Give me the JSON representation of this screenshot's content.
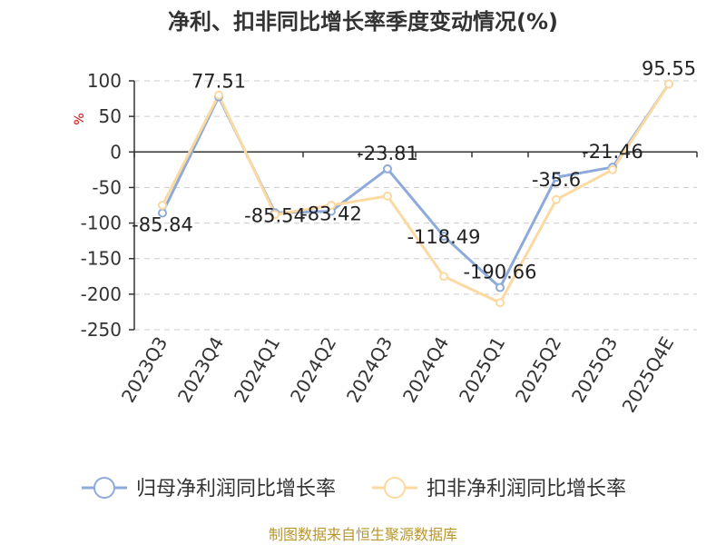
{
  "chart_data": {
    "type": "line",
    "title": "净利、扣非同比增长率季度变动情况(%)",
    "ylabel": "%",
    "categories": [
      "2023Q3",
      "2023Q4",
      "2024Q1",
      "2024Q2",
      "2024Q3",
      "2024Q4",
      "2025Q1",
      "2025Q2",
      "2025Q3",
      "2025Q4E"
    ],
    "ylim": [
      -250,
      100
    ],
    "yticks": [
      100,
      50,
      0,
      -50,
      -100,
      -150,
      -200,
      -250
    ],
    "grid": true,
    "legend_position": "bottom",
    "series": [
      {
        "name": "归母净利润同比增长率",
        "color": "#8eaadb",
        "values": [
          -85.84,
          77.51,
          -85.54,
          -83.42,
          -23.81,
          -118.49,
          -190.66,
          -35.6,
          -21.46,
          95.55
        ],
        "labels": [
          "-85.84",
          "77.51",
          "-85.54",
          "-83.42",
          "-23.81",
          "-118.49",
          "-190.66",
          "-35.6",
          "-21.46",
          "95.55"
        ]
      },
      {
        "name": "扣非净利润同比增长率",
        "color": "#fcd9a0",
        "values": [
          -75,
          80,
          -88,
          -75,
          -62,
          -175,
          -212,
          -67,
          -25,
          95.55
        ]
      }
    ]
  },
  "footer": "制图数据来自恒生聚源数据库"
}
